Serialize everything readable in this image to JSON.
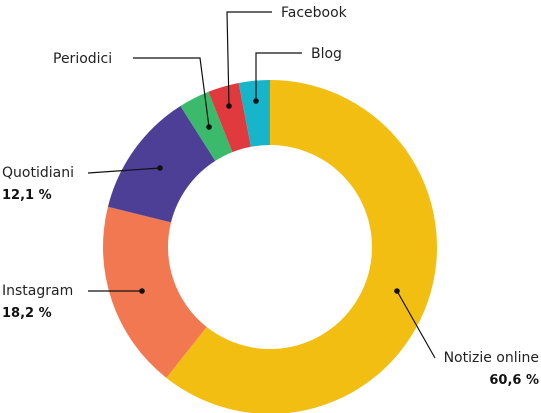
{
  "chart_data": {
    "type": "pie",
    "style": "donut",
    "title": "",
    "legend": "none",
    "series": [
      {
        "key": "notizie",
        "label": "Notizie online",
        "value": 60.6,
        "value_label": "60,6 %",
        "color": "#F2BE12"
      },
      {
        "key": "instagram",
        "label": "Instagram",
        "value": 18.2,
        "value_label": "18,2 %",
        "color": "#F27852"
      },
      {
        "key": "quotidiani",
        "label": "Quotidiani",
        "value": 12.1,
        "value_label": "12,1 %",
        "color": "#4E3F96"
      },
      {
        "key": "periodici",
        "label": "Periodici",
        "value": 3.0,
        "value_label": "",
        "color": "#3BBA6C"
      },
      {
        "key": "facebook",
        "label": "Facebook",
        "value": 3.0,
        "value_label": "",
        "color": "#E0393E"
      },
      {
        "key": "blog",
        "label": "Blog",
        "value": 3.0,
        "value_label": "",
        "color": "#16B5C9"
      }
    ]
  }
}
